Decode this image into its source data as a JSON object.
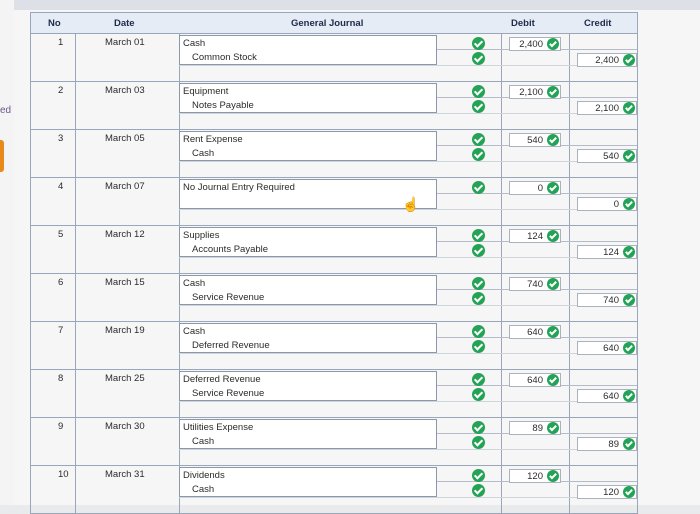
{
  "sidebar": {
    "fragment": "ed"
  },
  "header": {
    "no": "No",
    "date": "Date",
    "journal": "General Journal",
    "debit": "Debit",
    "credit": "Credit"
  },
  "rows": [
    {
      "no": "1",
      "date": "March 01",
      "acct1": "Cash",
      "acct2": "Common Stock",
      "debit": "2,400",
      "credit": "2,400",
      "checks": 2
    },
    {
      "no": "2",
      "date": "March 03",
      "acct1": "Equipment",
      "acct2": "Notes Payable",
      "debit": "2,100",
      "credit": "2,100",
      "checks": 2
    },
    {
      "no": "3",
      "date": "March 05",
      "acct1": "Rent Expense",
      "acct2": "Cash",
      "debit": "540",
      "credit": "540",
      "checks": 2
    },
    {
      "no": "4",
      "date": "March 07",
      "acct1": "No Journal Entry Required",
      "acct2": "",
      "debit": "0",
      "credit": "0",
      "checks": 1
    },
    {
      "no": "5",
      "date": "March 12",
      "acct1": "Supplies",
      "acct2": "Accounts Payable",
      "debit": "124",
      "credit": "124",
      "checks": 2
    },
    {
      "no": "6",
      "date": "March 15",
      "acct1": "Cash",
      "acct2": "Service Revenue",
      "debit": "740",
      "credit": "740",
      "checks": 2
    },
    {
      "no": "7",
      "date": "March 19",
      "acct1": "Cash",
      "acct2": "Deferred Revenue",
      "debit": "640",
      "credit": "640",
      "checks": 2
    },
    {
      "no": "8",
      "date": "March 25",
      "acct1": "Deferred Revenue",
      "acct2": "Service Revenue",
      "debit": "640",
      "credit": "640",
      "checks": 2
    },
    {
      "no": "9",
      "date": "March 30",
      "acct1": "Utilities Expense",
      "acct2": "Cash",
      "debit": "89",
      "credit": "89",
      "checks": 2
    },
    {
      "no": "10",
      "date": "March 31",
      "acct1": "Dividends",
      "acct2": "Cash",
      "debit": "120",
      "credit": "120",
      "checks": 2
    }
  ],
  "colors": {
    "check": "#24a256",
    "header_bg": "#e6ecf6",
    "grid_line": "#9aa7bb"
  },
  "icons": {
    "status": "check-circle-icon",
    "pointer": "hand-cursor-icon"
  }
}
